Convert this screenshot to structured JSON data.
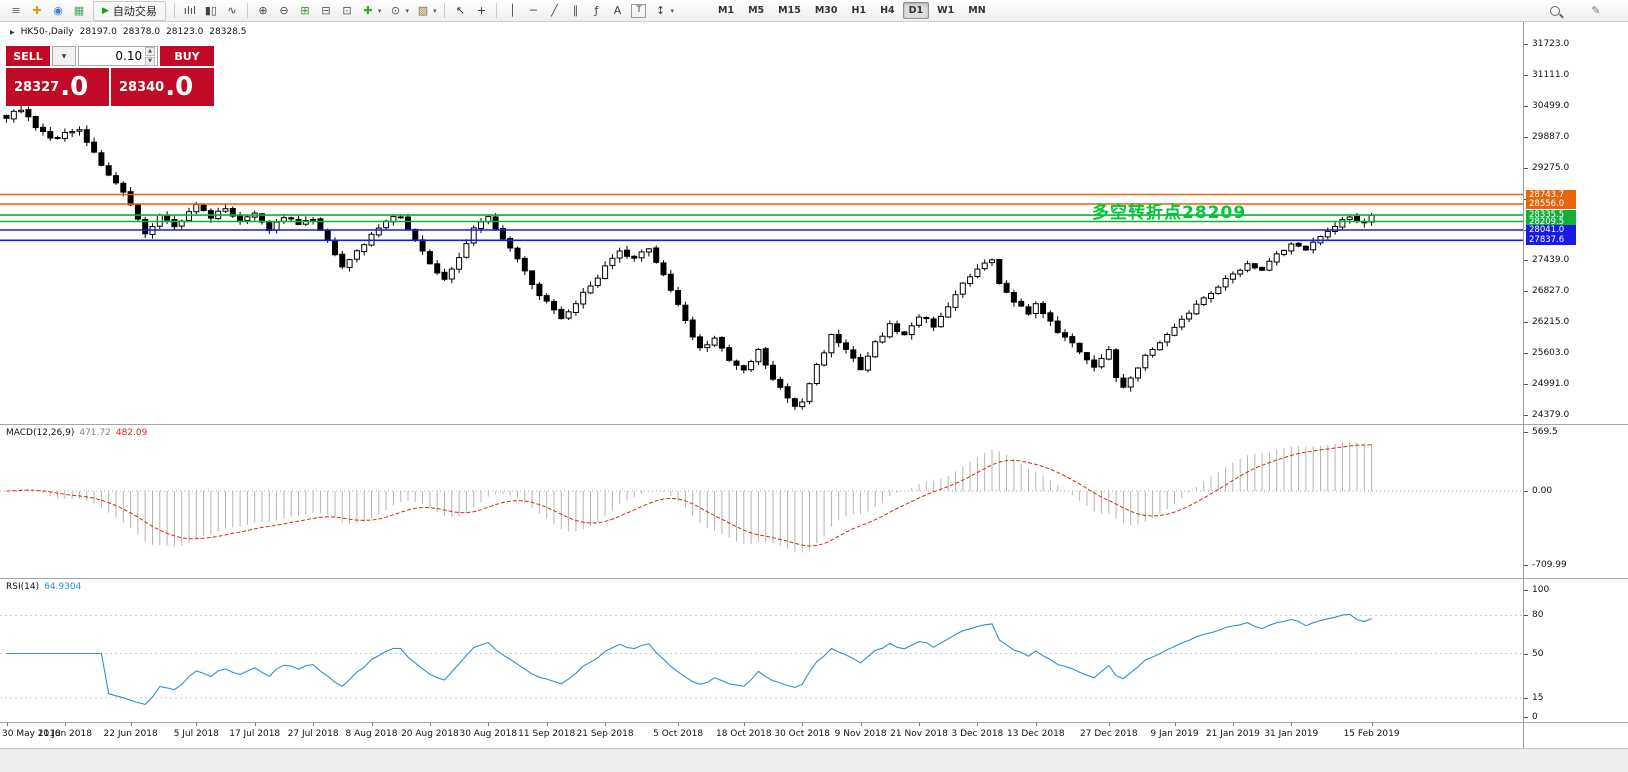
{
  "toolbar": {
    "autotrade_label": "自动交易",
    "timeframes": [
      "M1",
      "M5",
      "M15",
      "M30",
      "H1",
      "H4",
      "D1",
      "W1",
      "MN"
    ],
    "active_timeframe": "D1",
    "items": [
      {
        "n": "menu-icon",
        "g": "≡",
        "c": "#666666"
      },
      {
        "n": "new-order-icon",
        "g": "✚",
        "c": "#d4a017"
      },
      {
        "n": "market-watch-icon",
        "g": "◉",
        "c": "#3b7dd8"
      },
      {
        "n": "navigator-icon",
        "g": "▦",
        "c": "#4aa564"
      },
      {
        "autotrade": true
      },
      {
        "sep": true
      },
      {
        "n": "bar-chart-icon",
        "g": "ılıl",
        "c": "#444444"
      },
      {
        "n": "candlestick-chart-icon",
        "g": "▮▯",
        "c": "#444444"
      },
      {
        "n": "line-chart-icon",
        "g": "∿",
        "c": "#444444"
      },
      {
        "sep": true
      },
      {
        "n": "zoom-in-icon",
        "g": "⊕",
        "c": "#444444"
      },
      {
        "n": "zoom-out-icon",
        "g": "⊖",
        "c": "#444444"
      },
      {
        "n": "tile-windows-icon",
        "g": "⊞",
        "c": "#3a8f3a"
      },
      {
        "n": "arrange-horizontal-icon",
        "g": "⊟",
        "c": "#555555"
      },
      {
        "n": "arrange-vertical-icon",
        "g": "⊡",
        "c": "#555555"
      },
      {
        "n": "indicators-icon",
        "g": "✚",
        "c": "#2faa2f",
        "caret": true
      },
      {
        "n": "periods-icon",
        "g": "⊙",
        "c": "#555555",
        "caret": true
      },
      {
        "n": "templates-icon",
        "g": "▨",
        "c": "#8a6d3b",
        "caret": true
      },
      {
        "sep": true
      },
      {
        "n": "cursor-icon",
        "g": "↖",
        "c": "#333333"
      },
      {
        "n": "crosshair-icon",
        "g": "+",
        "c": "#333333"
      },
      {
        "sep": true
      },
      {
        "n": "vertical-line-icon",
        "g": "│",
        "c": "#444444"
      },
      {
        "n": "horizontal-line-icon",
        "g": "─",
        "c": "#444444"
      },
      {
        "n": "trendline-icon",
        "g": "╱",
        "c": "#444444"
      },
      {
        "n": "channel-icon",
        "g": "∥",
        "c": "#444444"
      },
      {
        "n": "fibonacci-icon",
        "g": "ƒ",
        "c": "#444444"
      },
      {
        "n": "text-icon",
        "g": "A",
        "c": "#444444"
      },
      {
        "n": "text-label-icon",
        "g": "T",
        "c": "#444444",
        "cls": "boxed"
      },
      {
        "n": "arrows-icon",
        "g": "↕",
        "c": "#444444",
        "caret": true
      }
    ]
  },
  "trade": {
    "sell_label": "SELL",
    "buy_label": "BUY",
    "volume": "0.10",
    "sell_price_main": "28327",
    "sell_price_frac": ".0",
    "buy_price_main": "28340",
    "buy_price_frac": ".0"
  },
  "chart": {
    "symbol_label": "HK50-,Daily",
    "ohlc": {
      "open": "28197.0",
      "high": "28378.0",
      "low": "28123.0",
      "close": "28328.5"
    },
    "annotation": {
      "text": "多空转折点28209",
      "color": "#00c63c"
    }
  },
  "macd": {
    "name": "MACD(12,26,9)",
    "main": "471.72",
    "signal": "482.09",
    "scale_labels": [
      "569.5",
      "0.00",
      "-709.99"
    ]
  },
  "rsi": {
    "name": "RSI(14)",
    "value": "64.9304",
    "scale_labels": [
      "100",
      "80",
      "50",
      "15",
      "0"
    ],
    "levels": [
      80,
      50,
      15
    ]
  },
  "price_scale": {
    "labels": [
      "31723.0",
      "31111.0",
      "30499.0",
      "29887.0",
      "29275.0",
      "28663.0",
      "28051.0",
      "27439.0",
      "26827.0",
      "26215.0",
      "25603.0",
      "24991.0",
      "24379.0"
    ]
  },
  "time_axis": {
    "dates": [
      {
        "label": "30 May 2018",
        "i": 0
      },
      {
        "label": "11 Jun 2018",
        "i": 8
      },
      {
        "label": "22 Jun 2018",
        "i": 17
      },
      {
        "label": "5 Jul 2018",
        "i": 26
      },
      {
        "label": "17 Jul 2018",
        "i": 34
      },
      {
        "label": "27 Jul 2018",
        "i": 42
      },
      {
        "label": "8 Aug 2018",
        "i": 50
      },
      {
        "label": "20 Aug 2018",
        "i": 58
      },
      {
        "label": "30 Aug 2018",
        "i": 66
      },
      {
        "label": "11 Sep 2018",
        "i": 74
      },
      {
        "label": "21 Sep 2018",
        "i": 82
      },
      {
        "label": "5 Oct 2018",
        "i": 92
      },
      {
        "label": "18 Oct 2018",
        "i": 101
      },
      {
        "label": "30 Oct 2018",
        "i": 109
      },
      {
        "label": "9 Nov 2018",
        "i": 117
      },
      {
        "label": "21 Nov 2018",
        "i": 125
      },
      {
        "label": "3 Dec 2018",
        "i": 133
      },
      {
        "label": "13 Dec 2018",
        "i": 141
      },
      {
        "label": "27 Dec 2018",
        "i": 151
      },
      {
        "label": "9 Jan 2019",
        "i": 160
      },
      {
        "label": "21 Jan 2019",
        "i": 168
      },
      {
        "label": "31 Jan 2019",
        "i": 176
      },
      {
        "label": "15 Feb 2019",
        "i": 187
      }
    ]
  },
  "chart_data": {
    "type": "candlestick",
    "symbol": "HK50-",
    "timeframe": "Daily",
    "title": "HK50-,Daily",
    "x_range": [
      "30 May 2018",
      "15 Feb 2019"
    ],
    "y_axis_labels": [
      31723,
      31111,
      30499,
      29887,
      29275,
      28663,
      28051,
      27439,
      26827,
      26215,
      25603,
      24991,
      24379
    ],
    "candle_count": 188,
    "last_ohlc": {
      "open": 28197.0,
      "high": 28378.0,
      "low": 28123.0,
      "close": 28328.5
    },
    "close_path_anchors": [
      [
        0,
        30250
      ],
      [
        2,
        30450
      ],
      [
        4,
        30050
      ],
      [
        6,
        29850
      ],
      [
        8,
        29950
      ],
      [
        10,
        30050
      ],
      [
        12,
        29550
      ],
      [
        14,
        29150
      ],
      [
        16,
        28750
      ],
      [
        17,
        28500
      ],
      [
        19,
        27950
      ],
      [
        21,
        28350
      ],
      [
        23,
        28100
      ],
      [
        26,
        28550
      ],
      [
        28,
        28250
      ],
      [
        30,
        28500
      ],
      [
        32,
        28200
      ],
      [
        34,
        28400
      ],
      [
        36,
        28050
      ],
      [
        38,
        28300
      ],
      [
        40,
        28150
      ],
      [
        42,
        28250
      ],
      [
        44,
        27800
      ],
      [
        46,
        27350
      ],
      [
        48,
        27600
      ],
      [
        50,
        27950
      ],
      [
        52,
        28250
      ],
      [
        54,
        28300
      ],
      [
        56,
        27850
      ],
      [
        58,
        27350
      ],
      [
        60,
        27050
      ],
      [
        62,
        27500
      ],
      [
        64,
        28100
      ],
      [
        66,
        28300
      ],
      [
        68,
        27900
      ],
      [
        70,
        27450
      ],
      [
        72,
        26950
      ],
      [
        74,
        26600
      ],
      [
        76,
        26250
      ],
      [
        78,
        26600
      ],
      [
        80,
        26950
      ],
      [
        82,
        27300
      ],
      [
        84,
        27600
      ],
      [
        86,
        27450
      ],
      [
        88,
        27700
      ],
      [
        90,
        27150
      ],
      [
        92,
        26550
      ],
      [
        94,
        25950
      ],
      [
        95,
        25700
      ],
      [
        97,
        25900
      ],
      [
        99,
        25450
      ],
      [
        101,
        25250
      ],
      [
        103,
        25650
      ],
      [
        105,
        25100
      ],
      [
        107,
        24700
      ],
      [
        108,
        24550
      ],
      [
        109,
        24650
      ],
      [
        111,
        25350
      ],
      [
        113,
        25950
      ],
      [
        115,
        25700
      ],
      [
        117,
        25250
      ],
      [
        119,
        25800
      ],
      [
        121,
        26150
      ],
      [
        123,
        25950
      ],
      [
        125,
        26350
      ],
      [
        127,
        26150
      ],
      [
        129,
        26550
      ],
      [
        131,
        26950
      ],
      [
        133,
        27250
      ],
      [
        135,
        27450
      ],
      [
        136,
        26950
      ],
      [
        138,
        26650
      ],
      [
        140,
        26400
      ],
      [
        141,
        26550
      ],
      [
        143,
        26200
      ],
      [
        145,
        25900
      ],
      [
        147,
        25650
      ],
      [
        149,
        25350
      ],
      [
        151,
        25650
      ],
      [
        152,
        25150
      ],
      [
        153,
        24950
      ],
      [
        155,
        25350
      ],
      [
        157,
        25700
      ],
      [
        159,
        25950
      ],
      [
        160,
        26150
      ],
      [
        162,
        26400
      ],
      [
        164,
        26700
      ],
      [
        166,
        26950
      ],
      [
        168,
        27150
      ],
      [
        170,
        27400
      ],
      [
        172,
        27250
      ],
      [
        174,
        27550
      ],
      [
        176,
        27750
      ],
      [
        178,
        27650
      ],
      [
        180,
        27950
      ],
      [
        182,
        28150
      ],
      [
        184,
        28300
      ],
      [
        186,
        28200
      ],
      [
        187,
        28328.5
      ]
    ],
    "horizontal_lines": [
      {
        "price": 28743.7,
        "color": "#e8650e"
      },
      {
        "price": 28556.0,
        "color": "#e8650e"
      },
      {
        "price": 28335.5,
        "color": "#12b03b"
      },
      {
        "price": 28209.5,
        "color": "#12b03b"
      },
      {
        "price": 28041.0,
        "color": "#1a1ae6"
      },
      {
        "price": 27837.6,
        "color": "#1a1ae6"
      }
    ],
    "indicators": [
      {
        "type": "MACD",
        "params": [
          12,
          26,
          9
        ],
        "last_main": 471.72,
        "last_signal": 482.09,
        "scale": [
          -709.99,
          569.5
        ]
      },
      {
        "type": "RSI",
        "period": 14,
        "last_value": 64.9304,
        "scale": [
          0,
          100
        ],
        "levels": [
          80,
          50,
          15
        ]
      }
    ]
  }
}
